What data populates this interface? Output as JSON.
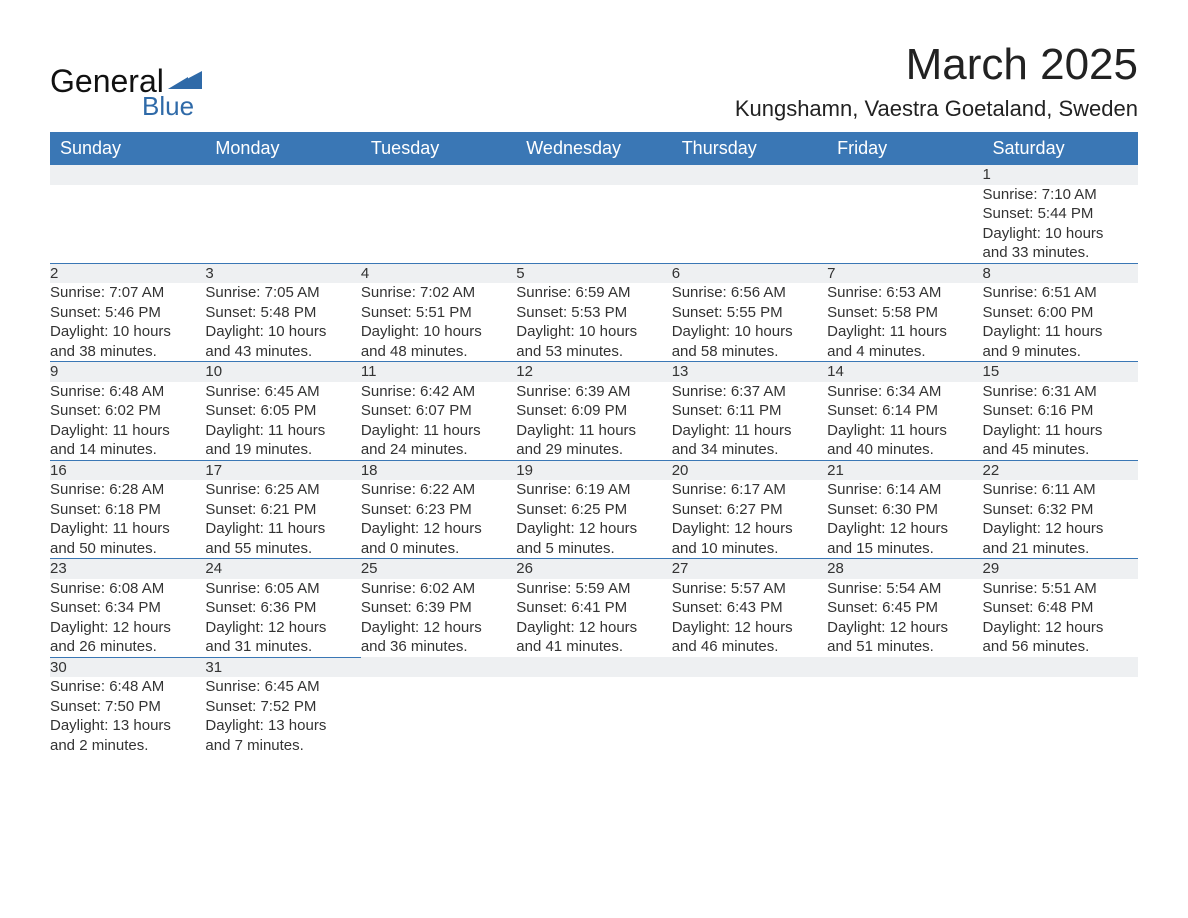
{
  "brand": {
    "name": "General",
    "sub": "Blue",
    "logo_color": "#2f6aa8"
  },
  "title": "March 2025",
  "location": "Kungshamn, Vaestra Goetaland, Sweden",
  "colors": {
    "header_blue": "#3a77b5",
    "row_rule": "#3a77b5",
    "gray_bg": "#eef0f2",
    "text": "#222222"
  },
  "weekdays": [
    "Sunday",
    "Monday",
    "Tuesday",
    "Wednesday",
    "Thursday",
    "Friday",
    "Saturday"
  ],
  "weeks": [
    [
      null,
      null,
      null,
      null,
      null,
      null,
      {
        "d": "1",
        "sr": "Sunrise: 7:10 AM",
        "ss": "Sunset: 5:44 PM",
        "dl1": "Daylight: 10 hours",
        "dl2": "and 33 minutes."
      }
    ],
    [
      {
        "d": "2",
        "sr": "Sunrise: 7:07 AM",
        "ss": "Sunset: 5:46 PM",
        "dl1": "Daylight: 10 hours",
        "dl2": "and 38 minutes."
      },
      {
        "d": "3",
        "sr": "Sunrise: 7:05 AM",
        "ss": "Sunset: 5:48 PM",
        "dl1": "Daylight: 10 hours",
        "dl2": "and 43 minutes."
      },
      {
        "d": "4",
        "sr": "Sunrise: 7:02 AM",
        "ss": "Sunset: 5:51 PM",
        "dl1": "Daylight: 10 hours",
        "dl2": "and 48 minutes."
      },
      {
        "d": "5",
        "sr": "Sunrise: 6:59 AM",
        "ss": "Sunset: 5:53 PM",
        "dl1": "Daylight: 10 hours",
        "dl2": "and 53 minutes."
      },
      {
        "d": "6",
        "sr": "Sunrise: 6:56 AM",
        "ss": "Sunset: 5:55 PM",
        "dl1": "Daylight: 10 hours",
        "dl2": "and 58 minutes."
      },
      {
        "d": "7",
        "sr": "Sunrise: 6:53 AM",
        "ss": "Sunset: 5:58 PM",
        "dl1": "Daylight: 11 hours",
        "dl2": "and 4 minutes."
      },
      {
        "d": "8",
        "sr": "Sunrise: 6:51 AM",
        "ss": "Sunset: 6:00 PM",
        "dl1": "Daylight: 11 hours",
        "dl2": "and 9 minutes."
      }
    ],
    [
      {
        "d": "9",
        "sr": "Sunrise: 6:48 AM",
        "ss": "Sunset: 6:02 PM",
        "dl1": "Daylight: 11 hours",
        "dl2": "and 14 minutes."
      },
      {
        "d": "10",
        "sr": "Sunrise: 6:45 AM",
        "ss": "Sunset: 6:05 PM",
        "dl1": "Daylight: 11 hours",
        "dl2": "and 19 minutes."
      },
      {
        "d": "11",
        "sr": "Sunrise: 6:42 AM",
        "ss": "Sunset: 6:07 PM",
        "dl1": "Daylight: 11 hours",
        "dl2": "and 24 minutes."
      },
      {
        "d": "12",
        "sr": "Sunrise: 6:39 AM",
        "ss": "Sunset: 6:09 PM",
        "dl1": "Daylight: 11 hours",
        "dl2": "and 29 minutes."
      },
      {
        "d": "13",
        "sr": "Sunrise: 6:37 AM",
        "ss": "Sunset: 6:11 PM",
        "dl1": "Daylight: 11 hours",
        "dl2": "and 34 minutes."
      },
      {
        "d": "14",
        "sr": "Sunrise: 6:34 AM",
        "ss": "Sunset: 6:14 PM",
        "dl1": "Daylight: 11 hours",
        "dl2": "and 40 minutes."
      },
      {
        "d": "15",
        "sr": "Sunrise: 6:31 AM",
        "ss": "Sunset: 6:16 PM",
        "dl1": "Daylight: 11 hours",
        "dl2": "and 45 minutes."
      }
    ],
    [
      {
        "d": "16",
        "sr": "Sunrise: 6:28 AM",
        "ss": "Sunset: 6:18 PM",
        "dl1": "Daylight: 11 hours",
        "dl2": "and 50 minutes."
      },
      {
        "d": "17",
        "sr": "Sunrise: 6:25 AM",
        "ss": "Sunset: 6:21 PM",
        "dl1": "Daylight: 11 hours",
        "dl2": "and 55 minutes."
      },
      {
        "d": "18",
        "sr": "Sunrise: 6:22 AM",
        "ss": "Sunset: 6:23 PM",
        "dl1": "Daylight: 12 hours",
        "dl2": "and 0 minutes."
      },
      {
        "d": "19",
        "sr": "Sunrise: 6:19 AM",
        "ss": "Sunset: 6:25 PM",
        "dl1": "Daylight: 12 hours",
        "dl2": "and 5 minutes."
      },
      {
        "d": "20",
        "sr": "Sunrise: 6:17 AM",
        "ss": "Sunset: 6:27 PM",
        "dl1": "Daylight: 12 hours",
        "dl2": "and 10 minutes."
      },
      {
        "d": "21",
        "sr": "Sunrise: 6:14 AM",
        "ss": "Sunset: 6:30 PM",
        "dl1": "Daylight: 12 hours",
        "dl2": "and 15 minutes."
      },
      {
        "d": "22",
        "sr": "Sunrise: 6:11 AM",
        "ss": "Sunset: 6:32 PM",
        "dl1": "Daylight: 12 hours",
        "dl2": "and 21 minutes."
      }
    ],
    [
      {
        "d": "23",
        "sr": "Sunrise: 6:08 AM",
        "ss": "Sunset: 6:34 PM",
        "dl1": "Daylight: 12 hours",
        "dl2": "and 26 minutes."
      },
      {
        "d": "24",
        "sr": "Sunrise: 6:05 AM",
        "ss": "Sunset: 6:36 PM",
        "dl1": "Daylight: 12 hours",
        "dl2": "and 31 minutes."
      },
      {
        "d": "25",
        "sr": "Sunrise: 6:02 AM",
        "ss": "Sunset: 6:39 PM",
        "dl1": "Daylight: 12 hours",
        "dl2": "and 36 minutes."
      },
      {
        "d": "26",
        "sr": "Sunrise: 5:59 AM",
        "ss": "Sunset: 6:41 PM",
        "dl1": "Daylight: 12 hours",
        "dl2": "and 41 minutes."
      },
      {
        "d": "27",
        "sr": "Sunrise: 5:57 AM",
        "ss": "Sunset: 6:43 PM",
        "dl1": "Daylight: 12 hours",
        "dl2": "and 46 minutes."
      },
      {
        "d": "28",
        "sr": "Sunrise: 5:54 AM",
        "ss": "Sunset: 6:45 PM",
        "dl1": "Daylight: 12 hours",
        "dl2": "and 51 minutes."
      },
      {
        "d": "29",
        "sr": "Sunrise: 5:51 AM",
        "ss": "Sunset: 6:48 PM",
        "dl1": "Daylight: 12 hours",
        "dl2": "and 56 minutes."
      }
    ],
    [
      {
        "d": "30",
        "sr": "Sunrise: 6:48 AM",
        "ss": "Sunset: 7:50 PM",
        "dl1": "Daylight: 13 hours",
        "dl2": "and 2 minutes."
      },
      {
        "d": "31",
        "sr": "Sunrise: 6:45 AM",
        "ss": "Sunset: 7:52 PM",
        "dl1": "Daylight: 13 hours",
        "dl2": "and 7 minutes."
      },
      null,
      null,
      null,
      null,
      null
    ]
  ]
}
